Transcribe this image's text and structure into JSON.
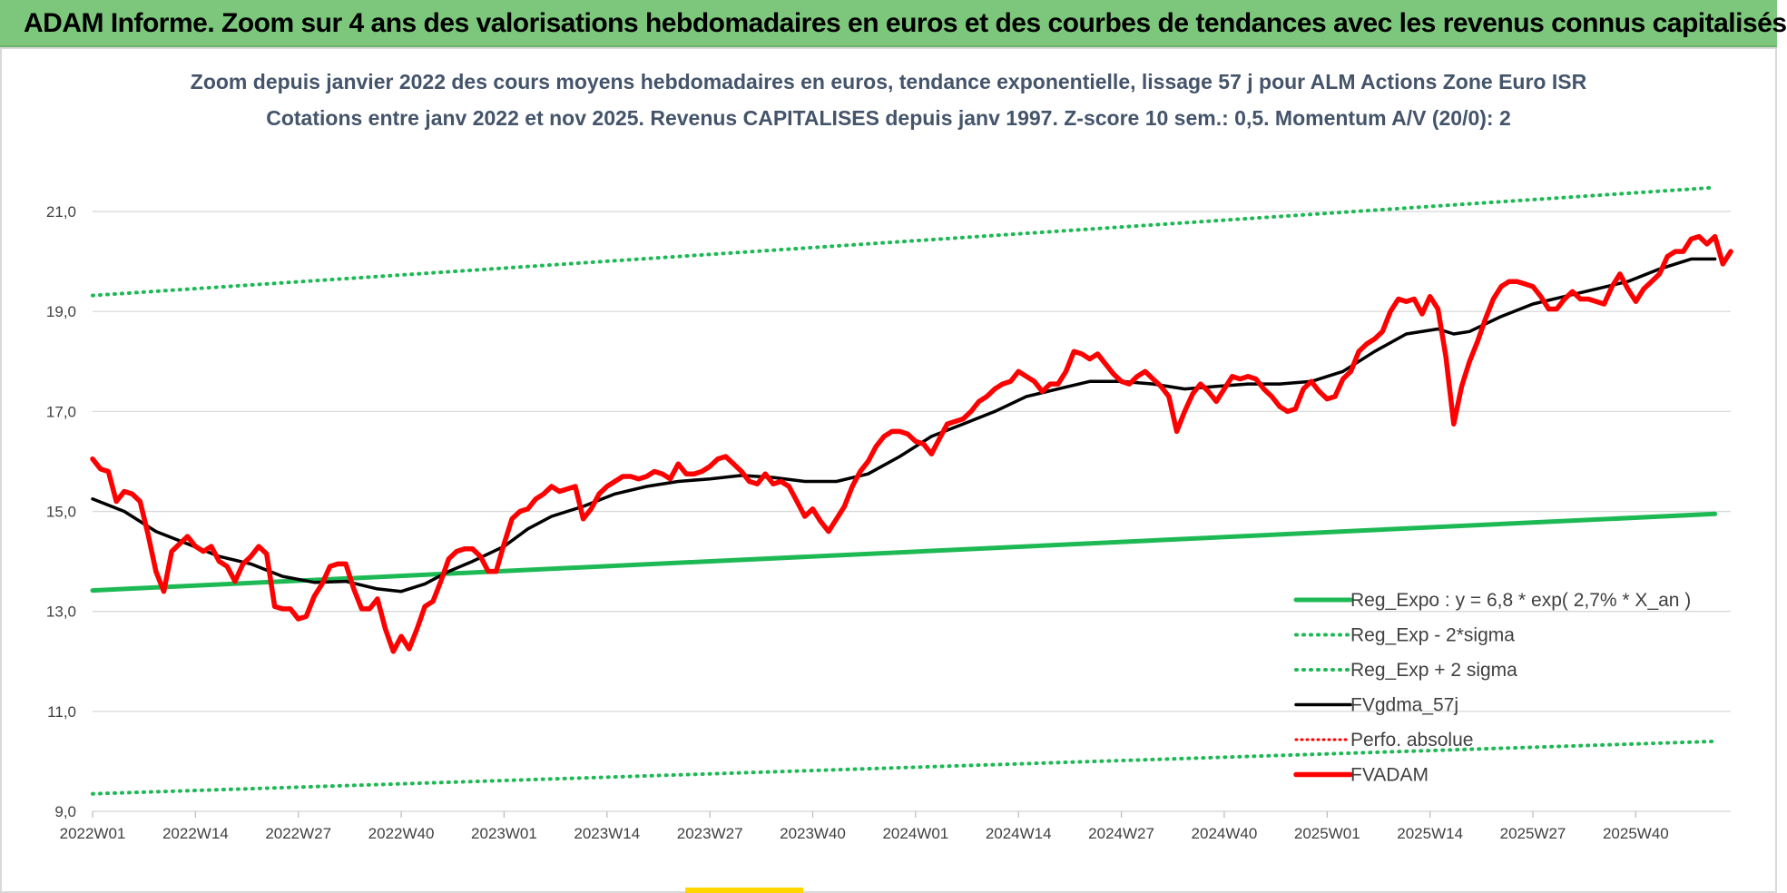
{
  "banner": {
    "title": "ADAM Informe. Zoom sur 4 ans des valorisations hebdomadaires en euros et des courbes de tendances avec les revenus connus capitalisés"
  },
  "colors": {
    "banner_bg": "#7dc77d",
    "trend_green": "#1db954",
    "fvadam_red": "#ff0000",
    "fvgdma_black": "#000000",
    "title_slate": "#44546a"
  },
  "chart_data": {
    "type": "line",
    "title": "Zoom depuis janvier 2022 des cours moyens hebdomadaires en euros, tendance exponentielle, lissage 57 j pour ALM Actions Zone Euro ISR",
    "subtitle": "Cotations entre janv 2022 et nov 2025. Revenus CAPITALISES depuis janv 1997. Z-score 10 sem.: 0,5. Momentum A/V (20/0): 2",
    "xlabel": "",
    "ylabel": "",
    "ylim": [
      9,
      22
    ],
    "yticks": [
      "9,0",
      "11,0",
      "13,0",
      "15,0",
      "17,0",
      "19,0",
      "21,0"
    ],
    "ytick_values": [
      9,
      11,
      13,
      15,
      17,
      19,
      21
    ],
    "x_ticks": [
      "2022W01",
      "2022W14",
      "2022W27",
      "2022W40",
      "2023W01",
      "2023W14",
      "2023W27",
      "2023W40",
      "2024W01",
      "2024W14",
      "2024W27",
      "2024W40",
      "2025W01",
      "2025W14",
      "2025W27",
      "2025W40"
    ],
    "x_tick_positions": [
      0,
      13,
      26,
      39,
      52,
      65,
      78,
      91,
      104,
      117,
      130,
      143,
      156,
      169,
      182,
      195
    ],
    "x_range": [
      0,
      205
    ],
    "grid": "horizontal",
    "legend_position": "bottom-right",
    "series": [
      {
        "name": "Reg_Expo : y = 6,8 * exp( 2,7% *  X_an )",
        "style": "solid-green-thick",
        "points": [
          [
            0,
            13.42
          ],
          [
            205,
            14.95
          ]
        ]
      },
      {
        "name": "Reg_Exp - 2*sigma",
        "style": "dotted-green",
        "points": [
          [
            0,
            9.35
          ],
          [
            205,
            10.4
          ]
        ]
      },
      {
        "name": "Reg_Exp + 2 sigma",
        "style": "dotted-green",
        "points": [
          [
            0,
            19.32
          ],
          [
            205,
            21.48
          ]
        ]
      },
      {
        "name": "FVgdma_57j",
        "style": "solid-black",
        "points": [
          [
            0,
            15.25
          ],
          [
            4,
            15.0
          ],
          [
            8,
            14.6
          ],
          [
            12,
            14.35
          ],
          [
            16,
            14.1
          ],
          [
            20,
            13.95
          ],
          [
            24,
            13.7
          ],
          [
            28,
            13.58
          ],
          [
            32,
            13.6
          ],
          [
            36,
            13.45
          ],
          [
            39,
            13.4
          ],
          [
            42,
            13.55
          ],
          [
            45,
            13.8
          ],
          [
            48,
            14.0
          ],
          [
            52,
            14.3
          ],
          [
            55,
            14.65
          ],
          [
            58,
            14.9
          ],
          [
            62,
            15.1
          ],
          [
            66,
            15.35
          ],
          [
            70,
            15.5
          ],
          [
            74,
            15.6
          ],
          [
            78,
            15.65
          ],
          [
            82,
            15.72
          ],
          [
            86,
            15.68
          ],
          [
            90,
            15.6
          ],
          [
            94,
            15.6
          ],
          [
            98,
            15.75
          ],
          [
            102,
            16.1
          ],
          [
            106,
            16.5
          ],
          [
            110,
            16.75
          ],
          [
            114,
            17.0
          ],
          [
            118,
            17.3
          ],
          [
            122,
            17.45
          ],
          [
            126,
            17.6
          ],
          [
            130,
            17.6
          ],
          [
            134,
            17.55
          ],
          [
            138,
            17.45
          ],
          [
            142,
            17.5
          ],
          [
            146,
            17.55
          ],
          [
            150,
            17.55
          ],
          [
            154,
            17.6
          ],
          [
            158,
            17.8
          ],
          [
            162,
            18.2
          ],
          [
            166,
            18.55
          ],
          [
            170,
            18.65
          ],
          [
            172,
            18.55
          ],
          [
            174,
            18.6
          ],
          [
            178,
            18.9
          ],
          [
            182,
            19.15
          ],
          [
            186,
            19.3
          ],
          [
            190,
            19.45
          ],
          [
            194,
            19.6
          ],
          [
            198,
            19.85
          ],
          [
            202,
            20.05
          ],
          [
            205,
            20.05
          ]
        ]
      },
      {
        "name": "Perfo. absolue",
        "style": "dotted-red",
        "points": []
      },
      {
        "name": "FVADAM",
        "style": "solid-red-thick",
        "points": [
          [
            0,
            16.05
          ],
          [
            1,
            15.85
          ],
          [
            2,
            15.8
          ],
          [
            3,
            15.2
          ],
          [
            4,
            15.4
          ],
          [
            5,
            15.35
          ],
          [
            6,
            15.2
          ],
          [
            7,
            14.55
          ],
          [
            8,
            13.8
          ],
          [
            9,
            13.4
          ],
          [
            10,
            14.2
          ],
          [
            11,
            14.35
          ],
          [
            12,
            14.5
          ],
          [
            13,
            14.3
          ],
          [
            14,
            14.2
          ],
          [
            15,
            14.3
          ],
          [
            16,
            14.0
          ],
          [
            17,
            13.9
          ],
          [
            18,
            13.6
          ],
          [
            19,
            13.95
          ],
          [
            20,
            14.1
          ],
          [
            21,
            14.3
          ],
          [
            22,
            14.15
          ],
          [
            23,
            13.1
          ],
          [
            24,
            13.05
          ],
          [
            25,
            13.05
          ],
          [
            26,
            12.85
          ],
          [
            27,
            12.9
          ],
          [
            28,
            13.3
          ],
          [
            29,
            13.55
          ],
          [
            30,
            13.9
          ],
          [
            31,
            13.95
          ],
          [
            32,
            13.95
          ],
          [
            33,
            13.45
          ],
          [
            34,
            13.05
          ],
          [
            35,
            13.05
          ],
          [
            36,
            13.25
          ],
          [
            37,
            12.65
          ],
          [
            38,
            12.2
          ],
          [
            39,
            12.5
          ],
          [
            40,
            12.25
          ],
          [
            41,
            12.65
          ],
          [
            42,
            13.1
          ],
          [
            43,
            13.2
          ],
          [
            44,
            13.6
          ],
          [
            45,
            14.05
          ],
          [
            46,
            14.2
          ],
          [
            47,
            14.25
          ],
          [
            48,
            14.25
          ],
          [
            49,
            14.1
          ],
          [
            50,
            13.8
          ],
          [
            51,
            13.8
          ],
          [
            52,
            14.35
          ],
          [
            53,
            14.85
          ],
          [
            54,
            15.0
          ],
          [
            55,
            15.05
          ],
          [
            56,
            15.25
          ],
          [
            57,
            15.35
          ],
          [
            58,
            15.5
          ],
          [
            59,
            15.4
          ],
          [
            60,
            15.45
          ],
          [
            61,
            15.5
          ],
          [
            62,
            14.85
          ],
          [
            63,
            15.05
          ],
          [
            64,
            15.35
          ],
          [
            65,
            15.5
          ],
          [
            66,
            15.6
          ],
          [
            67,
            15.7
          ],
          [
            68,
            15.7
          ],
          [
            69,
            15.65
          ],
          [
            70,
            15.7
          ],
          [
            71,
            15.8
          ],
          [
            72,
            15.75
          ],
          [
            73,
            15.65
          ],
          [
            74,
            15.95
          ],
          [
            75,
            15.75
          ],
          [
            76,
            15.75
          ],
          [
            77,
            15.8
          ],
          [
            78,
            15.9
          ],
          [
            79,
            16.05
          ],
          [
            80,
            16.1
          ],
          [
            81,
            15.95
          ],
          [
            82,
            15.8
          ],
          [
            83,
            15.6
          ],
          [
            84,
            15.55
          ],
          [
            85,
            15.75
          ],
          [
            86,
            15.55
          ],
          [
            87,
            15.6
          ],
          [
            88,
            15.5
          ],
          [
            89,
            15.2
          ],
          [
            90,
            14.9
          ],
          [
            91,
            15.05
          ],
          [
            92,
            14.8
          ],
          [
            93,
            14.6
          ],
          [
            94,
            14.85
          ],
          [
            95,
            15.1
          ],
          [
            96,
            15.5
          ],
          [
            97,
            15.8
          ],
          [
            98,
            16.0
          ],
          [
            99,
            16.3
          ],
          [
            100,
            16.5
          ],
          [
            101,
            16.6
          ],
          [
            102,
            16.6
          ],
          [
            103,
            16.55
          ],
          [
            104,
            16.4
          ],
          [
            105,
            16.35
          ],
          [
            106,
            16.15
          ],
          [
            107,
            16.45
          ],
          [
            108,
            16.75
          ],
          [
            109,
            16.8
          ],
          [
            110,
            16.85
          ],
          [
            111,
            17.0
          ],
          [
            112,
            17.2
          ],
          [
            113,
            17.3
          ],
          [
            114,
            17.45
          ],
          [
            115,
            17.55
          ],
          [
            116,
            17.6
          ],
          [
            117,
            17.8
          ],
          [
            118,
            17.7
          ],
          [
            119,
            17.6
          ],
          [
            120,
            17.4
          ],
          [
            121,
            17.55
          ],
          [
            122,
            17.55
          ],
          [
            123,
            17.8
          ],
          [
            124,
            18.2
          ],
          [
            125,
            18.15
          ],
          [
            126,
            18.05
          ],
          [
            127,
            18.15
          ],
          [
            128,
            17.95
          ],
          [
            129,
            17.75
          ],
          [
            130,
            17.6
          ],
          [
            131,
            17.55
          ],
          [
            132,
            17.7
          ],
          [
            133,
            17.8
          ],
          [
            134,
            17.65
          ],
          [
            135,
            17.5
          ],
          [
            136,
            17.3
          ],
          [
            137,
            16.6
          ],
          [
            138,
            17.0
          ],
          [
            139,
            17.35
          ],
          [
            140,
            17.55
          ],
          [
            141,
            17.4
          ],
          [
            142,
            17.2
          ],
          [
            143,
            17.45
          ],
          [
            144,
            17.7
          ],
          [
            145,
            17.65
          ],
          [
            146,
            17.7
          ],
          [
            147,
            17.65
          ],
          [
            148,
            17.45
          ],
          [
            149,
            17.3
          ],
          [
            150,
            17.1
          ],
          [
            151,
            17.0
          ],
          [
            152,
            17.05
          ],
          [
            153,
            17.45
          ],
          [
            154,
            17.6
          ],
          [
            155,
            17.4
          ],
          [
            156,
            17.25
          ],
          [
            157,
            17.3
          ],
          [
            158,
            17.65
          ],
          [
            159,
            17.8
          ],
          [
            160,
            18.2
          ],
          [
            161,
            18.35
          ],
          [
            162,
            18.45
          ],
          [
            163,
            18.6
          ],
          [
            164,
            19.0
          ],
          [
            165,
            19.25
          ],
          [
            166,
            19.2
          ],
          [
            167,
            19.25
          ],
          [
            168,
            18.95
          ],
          [
            169,
            19.3
          ],
          [
            170,
            19.05
          ],
          [
            171,
            18.1
          ],
          [
            172,
            16.75
          ],
          [
            173,
            17.5
          ],
          [
            174,
            18.0
          ],
          [
            175,
            18.4
          ],
          [
            176,
            18.85
          ],
          [
            177,
            19.25
          ],
          [
            178,
            19.5
          ],
          [
            179,
            19.6
          ],
          [
            180,
            19.6
          ],
          [
            181,
            19.55
          ],
          [
            182,
            19.5
          ],
          [
            183,
            19.3
          ],
          [
            184,
            19.05
          ],
          [
            185,
            19.05
          ],
          [
            186,
            19.25
          ],
          [
            187,
            19.4
          ],
          [
            188,
            19.25
          ],
          [
            189,
            19.25
          ],
          [
            190,
            19.2
          ],
          [
            191,
            19.15
          ],
          [
            192,
            19.5
          ],
          [
            193,
            19.75
          ],
          [
            194,
            19.45
          ],
          [
            195,
            19.2
          ],
          [
            196,
            19.45
          ],
          [
            197,
            19.6
          ],
          [
            198,
            19.75
          ],
          [
            199,
            20.1
          ],
          [
            200,
            20.2
          ],
          [
            201,
            20.2
          ],
          [
            202,
            20.45
          ],
          [
            203,
            20.5
          ],
          [
            204,
            20.35
          ],
          [
            205,
            20.5
          ],
          [
            206,
            19.95
          ],
          [
            207,
            20.2
          ]
        ]
      }
    ]
  }
}
